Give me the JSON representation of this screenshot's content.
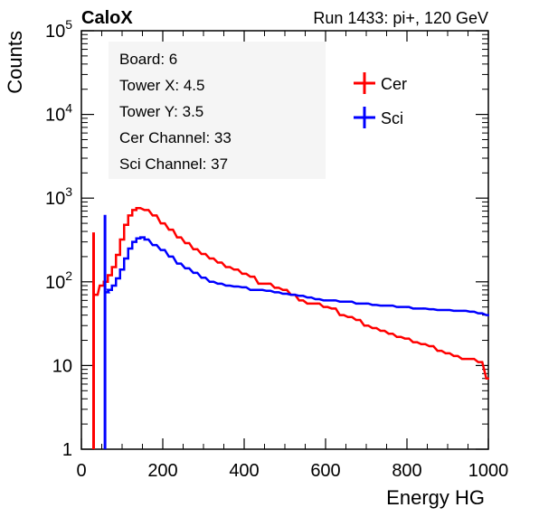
{
  "header": {
    "left": "CaloX",
    "right": "Run 1433: pi+, 120 GeV"
  },
  "info_lines": [
    "Board: 6",
    "Tower X: 4.5",
    "Tower Y: 3.5",
    "Cer Channel: 33",
    "Sci Channel: 37"
  ],
  "colors": {
    "Cer": "#ff0000",
    "Sci": "#0000ff",
    "info_box": "#f5f5f5"
  },
  "chart_data": {
    "type": "line",
    "title": "",
    "xlabel": "Energy HG",
    "ylabel": "Counts",
    "xlim": [
      0,
      1000
    ],
    "ylim": [
      1,
      100000
    ],
    "yscale": "log",
    "grid": false,
    "legend_position": "top-right",
    "x_ticks": [
      "0",
      "200",
      "400",
      "600",
      "800",
      "1000"
    ],
    "y_ticks": [
      {
        "value": 1,
        "label": "1"
      },
      {
        "value": 10,
        "label": "10"
      },
      {
        "value": 100,
        "label": "10",
        "exp": "2"
      },
      {
        "value": 1000,
        "label": "10",
        "exp": "3"
      },
      {
        "value": 10000,
        "label": "10",
        "exp": "4"
      },
      {
        "value": 100000,
        "label": "10",
        "exp": "5"
      }
    ],
    "series": [
      {
        "name": "Cer",
        "spike": {
          "x": 30,
          "y": 390
        },
        "x": [
          35,
          50,
          60,
          70,
          80,
          90,
          100,
          110,
          120,
          130,
          140,
          160,
          180,
          200,
          220,
          240,
          260,
          280,
          300,
          320,
          340,
          360,
          380,
          400,
          420,
          440,
          460,
          480,
          500,
          520,
          540,
          560,
          580,
          600,
          620,
          640,
          660,
          680,
          700,
          720,
          740,
          760,
          780,
          800,
          820,
          840,
          860,
          880,
          900,
          920,
          940,
          960,
          980,
          1000
        ],
        "y": [
          70,
          90,
          100,
          120,
          150,
          210,
          320,
          480,
          620,
          720,
          760,
          720,
          620,
          500,
          420,
          340,
          290,
          245,
          215,
          190,
          170,
          150,
          140,
          125,
          115,
          95,
          95,
          85,
          80,
          70,
          60,
          55,
          55,
          50,
          48,
          40,
          38,
          35,
          30,
          28,
          26,
          24,
          22,
          21,
          19,
          18,
          17,
          15,
          14,
          13,
          12,
          12,
          11,
          7
        ]
      },
      {
        "name": "Sci",
        "spike": {
          "x": 58,
          "y": 630
        },
        "x": [
          62,
          70,
          80,
          90,
          100,
          110,
          120,
          130,
          140,
          150,
          160,
          180,
          200,
          220,
          240,
          260,
          280,
          300,
          320,
          340,
          360,
          380,
          400,
          420,
          440,
          460,
          480,
          500,
          520,
          540,
          560,
          580,
          600,
          620,
          640,
          660,
          680,
          700,
          720,
          740,
          760,
          780,
          800,
          820,
          840,
          860,
          880,
          900,
          920,
          940,
          960,
          980,
          1000
        ],
        "y": [
          75,
          80,
          90,
          110,
          140,
          190,
          250,
          300,
          330,
          340,
          320,
          275,
          240,
          200,
          165,
          145,
          128,
          112,
          100,
          95,
          90,
          88,
          86,
          80,
          80,
          78,
          75,
          72,
          70,
          68,
          65,
          62,
          60,
          60,
          58,
          58,
          55,
          55,
          53,
          52,
          52,
          50,
          50,
          48,
          48,
          47,
          46,
          46,
          45,
          45,
          44,
          42,
          40
        ]
      }
    ]
  }
}
